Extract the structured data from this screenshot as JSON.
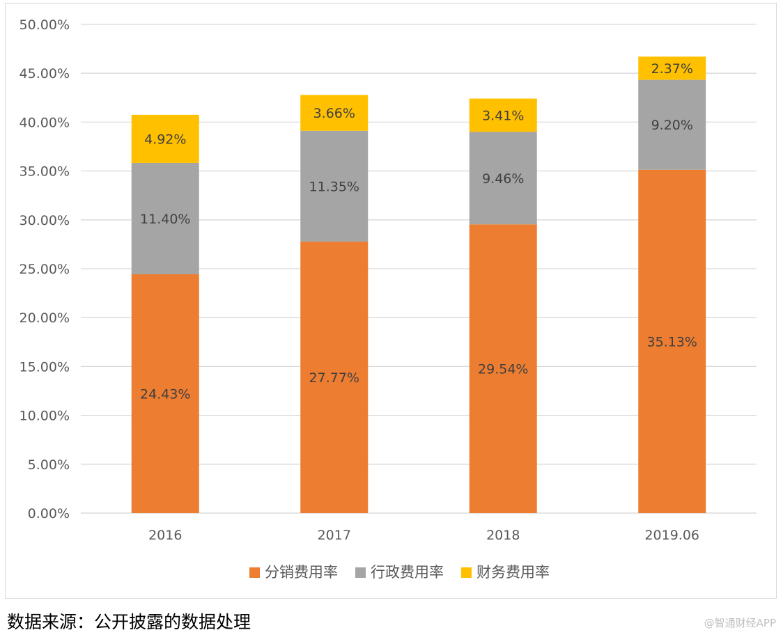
{
  "chart_data": {
    "type": "bar",
    "stacked": true,
    "categories": [
      "2016",
      "2017",
      "2018",
      "2019.06"
    ],
    "series": [
      {
        "name": "分销费用率",
        "color": "#ed7d31",
        "values": [
          24.43,
          27.77,
          29.54,
          35.13
        ],
        "labels": [
          "24.43%",
          "27.77%",
          "29.54%",
          "35.13%"
        ]
      },
      {
        "name": "行政费用率",
        "color": "#a5a5a5",
        "values": [
          11.4,
          11.35,
          9.46,
          9.2
        ],
        "labels": [
          "11.40%",
          "11.35%",
          "9.46%",
          "9.20%"
        ]
      },
      {
        "name": "财务费用率",
        "color": "#ffc000",
        "values": [
          4.92,
          3.66,
          3.41,
          2.37
        ],
        "labels": [
          "4.92%",
          "3.66%",
          "3.41%",
          "2.37%"
        ]
      }
    ],
    "ylim": [
      0,
      50
    ],
    "yticks": [
      "0.00%",
      "5.00%",
      "10.00%",
      "15.00%",
      "20.00%",
      "25.00%",
      "30.00%",
      "35.00%",
      "40.00%",
      "45.00%",
      "50.00%"
    ],
    "ytick_values": [
      0,
      5,
      10,
      15,
      20,
      25,
      30,
      35,
      40,
      45,
      50
    ],
    "grid": true,
    "legend_position": "bottom",
    "title": "",
    "xlabel": "",
    "ylabel": ""
  },
  "source_note": "数据来源：公开披露的数据处理",
  "watermark": "@智通财经APP"
}
